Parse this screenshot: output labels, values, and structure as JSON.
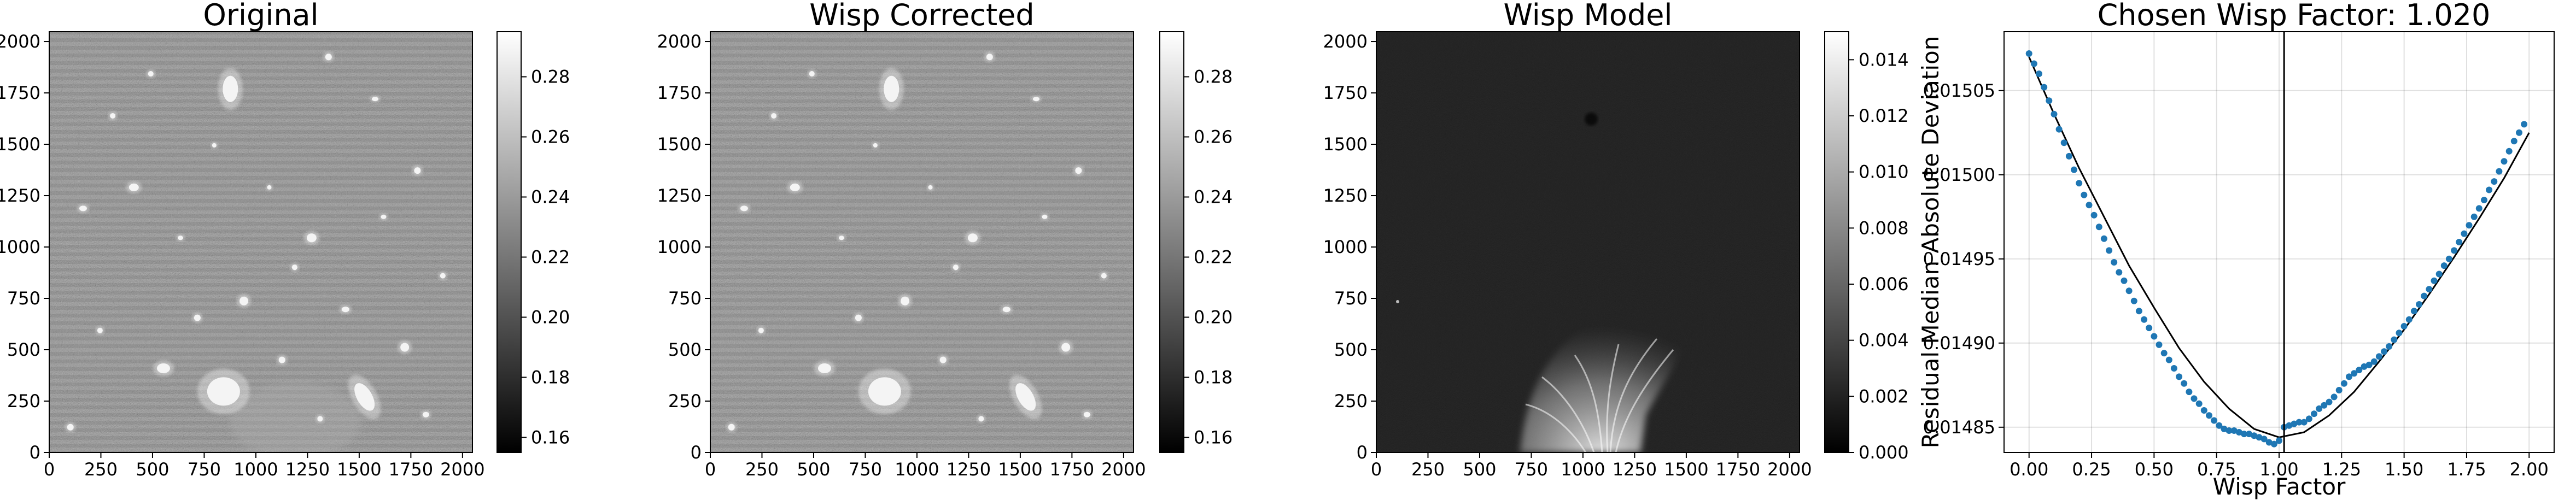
{
  "chart_data": [
    {
      "type": "image",
      "title": "Original",
      "xlim": [
        0,
        2048
      ],
      "ylim": [
        0,
        2048
      ],
      "xticks": [
        0,
        250,
        500,
        750,
        1000,
        1250,
        1500,
        1750,
        2000
      ],
      "yticks": [
        0,
        250,
        500,
        750,
        1000,
        1250,
        1500,
        1750,
        2000
      ],
      "colormap": "gray",
      "colorbar": {
        "range": [
          0.155,
          0.295
        ],
        "ticks": [
          "0.16",
          "0.18",
          "0.20",
          "0.22",
          "0.24",
          "0.26",
          "0.28"
        ]
      }
    },
    {
      "type": "image",
      "title": "Wisp Corrected",
      "xlim": [
        0,
        2048
      ],
      "ylim": [
        0,
        2048
      ],
      "xticks": [
        0,
        250,
        500,
        750,
        1000,
        1250,
        1500,
        1750,
        2000
      ],
      "yticks": [
        0,
        250,
        500,
        750,
        1000,
        1250,
        1500,
        1750,
        2000
      ],
      "colormap": "gray",
      "colorbar": {
        "range": [
          0.155,
          0.295
        ],
        "ticks": [
          "0.16",
          "0.18",
          "0.20",
          "0.22",
          "0.24",
          "0.26",
          "0.28"
        ]
      }
    },
    {
      "type": "image",
      "title": "Wisp Model",
      "xlim": [
        0,
        2048
      ],
      "ylim": [
        0,
        2048
      ],
      "xticks": [
        0,
        250,
        500,
        750,
        1000,
        1250,
        1500,
        1750,
        2000
      ],
      "yticks": [
        0,
        250,
        500,
        750,
        1000,
        1250,
        1500,
        1750,
        2000
      ],
      "colormap": "gray",
      "colorbar": {
        "range": [
          0,
          0.015
        ],
        "ticks": [
          "0.000",
          "0.002",
          "0.004",
          "0.006",
          "0.008",
          "0.010",
          "0.012",
          "0.014"
        ]
      }
    },
    {
      "type": "scatter",
      "title": "Chosen Wisp Factor: 1.020",
      "xlabel": "Wisp Factor",
      "ylabel": "Residual Median Absolute Deviation",
      "xlim": [
        -0.1,
        2.1
      ],
      "ylim": [
        0.014835,
        0.015085
      ],
      "xticks": [
        "0.00",
        "0.25",
        "0.50",
        "0.75",
        "1.00",
        "1.25",
        "1.50",
        "1.75",
        "2.00"
      ],
      "yticks": [
        "0.01485",
        "0.01490",
        "0.01495",
        "0.01500",
        "0.01505"
      ],
      "grid": true,
      "chosen_factor": 1.02,
      "fit_curve": {
        "x": [
          0.0,
          0.1,
          0.2,
          0.3,
          0.4,
          0.5,
          0.6,
          0.7,
          0.8,
          0.9,
          1.0,
          1.1,
          1.2,
          1.3,
          1.4,
          1.5,
          1.6,
          1.7,
          1.8,
          1.9,
          2.0
        ],
        "y": [
          0.01507,
          0.015036,
          0.015004,
          0.014975,
          0.014946,
          0.014921,
          0.014897,
          0.014877,
          0.014861,
          0.014849,
          0.014844,
          0.014847,
          0.014857,
          0.014871,
          0.014889,
          0.014908,
          0.014929,
          0.014951,
          0.014974,
          0.014998,
          0.015025
        ]
      },
      "points": {
        "x": [
          0.0,
          0.02,
          0.04,
          0.06,
          0.08,
          0.1,
          0.12,
          0.14,
          0.16,
          0.18,
          0.2,
          0.22,
          0.24,
          0.26,
          0.28,
          0.3,
          0.32,
          0.34,
          0.36,
          0.38,
          0.4,
          0.42,
          0.44,
          0.46,
          0.48,
          0.5,
          0.52,
          0.54,
          0.56,
          0.58,
          0.6,
          0.62,
          0.64,
          0.66,
          0.68,
          0.7,
          0.72,
          0.74,
          0.76,
          0.78,
          0.8,
          0.82,
          0.84,
          0.86,
          0.88,
          0.9,
          0.92,
          0.94,
          0.96,
          0.98,
          1.0,
          1.02,
          1.04,
          1.06,
          1.08,
          1.1,
          1.12,
          1.14,
          1.16,
          1.18,
          1.2,
          1.22,
          1.24,
          1.26,
          1.28,
          1.3,
          1.32,
          1.34,
          1.36,
          1.38,
          1.4,
          1.42,
          1.44,
          1.46,
          1.48,
          1.5,
          1.52,
          1.54,
          1.56,
          1.58,
          1.6,
          1.62,
          1.64,
          1.66,
          1.68,
          1.7,
          1.72,
          1.74,
          1.76,
          1.78,
          1.8,
          1.82,
          1.84,
          1.86,
          1.88,
          1.9,
          1.92,
          1.94,
          1.96,
          1.98
        ],
        "y": [
          0.015072,
          0.015066,
          0.01506,
          0.015052,
          0.015044,
          0.015036,
          0.015027,
          0.015019,
          0.015011,
          0.015003,
          0.014995,
          0.014988,
          0.014982,
          0.014976,
          0.014969,
          0.014962,
          0.014955,
          0.014948,
          0.014942,
          0.014937,
          0.014931,
          0.014925,
          0.014919,
          0.014914,
          0.014909,
          0.014904,
          0.014899,
          0.014894,
          0.01489,
          0.014885,
          0.01488,
          0.014876,
          0.014871,
          0.014867,
          0.014864,
          0.01486,
          0.014857,
          0.014854,
          0.014851,
          0.014849,
          0.014848,
          0.014848,
          0.014847,
          0.014846,
          0.014846,
          0.014845,
          0.014844,
          0.014843,
          0.014841,
          0.01484,
          0.014842,
          0.01485,
          0.014851,
          0.014852,
          0.014853,
          0.014853,
          0.014855,
          0.014858,
          0.014861,
          0.014863,
          0.014865,
          0.014868,
          0.014872,
          0.014876,
          0.01488,
          0.014882,
          0.014884,
          0.014886,
          0.014887,
          0.014889,
          0.014892,
          0.014895,
          0.014898,
          0.014902,
          0.014906,
          0.01491,
          0.014914,
          0.014919,
          0.014923,
          0.014928,
          0.014932,
          0.014937,
          0.014941,
          0.014946,
          0.01495,
          0.014955,
          0.01496,
          0.014965,
          0.01497,
          0.014975,
          0.01498,
          0.014985,
          0.014991,
          0.014996,
          0.015002,
          0.015008,
          0.015014,
          0.01502,
          0.015025,
          0.01503
        ]
      }
    }
  ]
}
